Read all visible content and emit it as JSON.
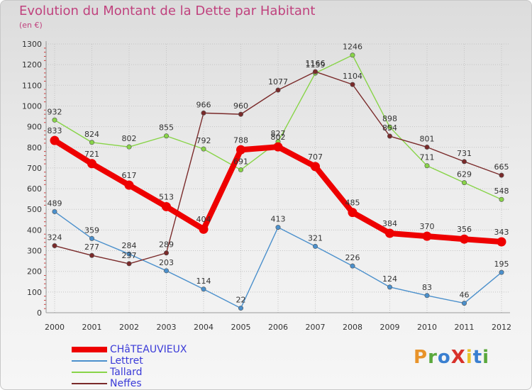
{
  "title": "Evolution du Montant de la Dette par Habitant",
  "unit_label": "(en €)",
  "logo": {
    "text": "ProXiti",
    "letter_colors": [
      "#e8932a",
      "#5aa83c",
      "#3a7fd0",
      "#d8312a",
      "#e8c22a",
      "#3a7fd0",
      "#5aa83c"
    ]
  },
  "chart_data": {
    "type": "line",
    "title": "Evolution du Montant de la Dette par Habitant",
    "subtitle": "(en €)",
    "xlabel": "",
    "ylabel": "",
    "categories": [
      "2000",
      "2001",
      "2002",
      "2003",
      "2004",
      "2005",
      "2006",
      "2007",
      "2008",
      "2009",
      "2010",
      "2011",
      "2012"
    ],
    "ylim": [
      0,
      1300
    ],
    "yticks": [
      0,
      100,
      200,
      300,
      400,
      500,
      600,
      700,
      800,
      900,
      1000,
      1100,
      1200,
      1300
    ],
    "grid": true,
    "legend_position": "bottom-left",
    "series": [
      {
        "name": "CHâTEAUVIEUX",
        "color": "#ee0000",
        "highlight": true,
        "values": [
          833,
          721,
          617,
          513,
          404,
          788,
          802,
          707,
          485,
          384,
          370,
          356,
          343
        ],
        "labels": [
          "833",
          "721",
          "617",
          "513",
          "404",
          "788",
          "802",
          "707",
          "485",
          "384",
          "370",
          "356",
          "343"
        ]
      },
      {
        "name": "Lettret",
        "color": "#4b90cc",
        "highlight": false,
        "values": [
          489,
          359,
          284,
          203,
          114,
          22,
          413,
          321,
          226,
          124,
          83,
          46,
          195
        ],
        "labels": [
          "489",
          "359",
          "284",
          "203",
          "114",
          "22",
          "413",
          "321",
          "226",
          "124",
          "83",
          "46",
          "195"
        ]
      },
      {
        "name": "Tallard",
        "color": "#88d448",
        "highlight": false,
        "values": [
          932,
          824,
          802,
          855,
          792,
          691,
          827,
          1159,
          1246,
          898,
          711,
          629,
          548
        ],
        "labels": [
          "932",
          "824",
          "802",
          "855",
          "792",
          "691",
          "827",
          "1159",
          "1246",
          "898",
          "711",
          "629",
          "548"
        ]
      },
      {
        "name": "Neffes",
        "color": "#7a2a2a",
        "highlight": false,
        "values": [
          324,
          277,
          237,
          289,
          966,
          960,
          1077,
          1166,
          1104,
          854,
          801,
          731,
          665
        ],
        "labels": [
          "324",
          "277",
          "237",
          "289",
          "966",
          "960",
          "1077",
          "1166",
          "1104",
          "854",
          "801",
          "731",
          "665"
        ]
      }
    ]
  }
}
